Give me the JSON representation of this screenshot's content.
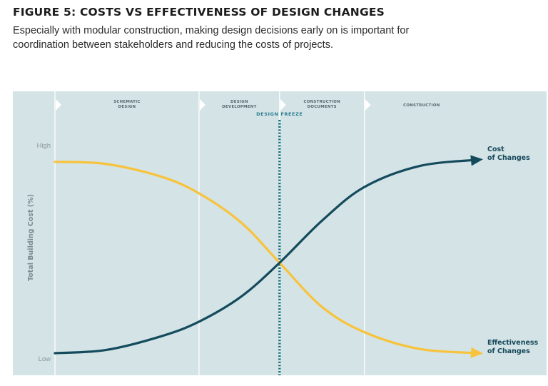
{
  "figure": {
    "title": "FIGURE 5: COSTS VS EFFECTIVENESS OF DESIGN CHANGES",
    "subtitle": "Especially with modular construction, making design decisions early on is important for coordination between stakeholders and reducing the costs of projects."
  },
  "colors": {
    "background": "#d3e3e6",
    "header_band": "#ffffff",
    "divider": "#ffffff",
    "cost_line": "#144b5c",
    "effectiveness_line": "#f8c33b",
    "freeze_line": "#136e7a",
    "label_text": "#16485a"
  },
  "chart_data": {
    "type": "line",
    "title": "",
    "xlabel": "",
    "ylabel": "Total Building Cost (%)",
    "x_range": [
      0,
      100
    ],
    "ylim": [
      0,
      100
    ],
    "y_tick_labels": [
      {
        "value": 95,
        "label": "High"
      },
      {
        "value": 0,
        "label": "Low"
      }
    ],
    "phases": [
      {
        "name": "SCHEMATIC DESIGN",
        "start": 0,
        "end": 34
      },
      {
        "name": "DESIGN DEVELOPMENT",
        "start": 34,
        "end": 53
      },
      {
        "name": "CONSTRUCTION DOCUMENTS",
        "start": 53,
        "end": 73
      },
      {
        "name": "CONSTRUCTION",
        "start": 73,
        "end": 100
      }
    ],
    "marker": {
      "label": "DESIGN FREEZE",
      "x": 53
    },
    "series": [
      {
        "name": "Cost of Changes",
        "label_lines": [
          "Cost",
          "of Changes"
        ],
        "x": [
          0,
          12,
          25,
          34,
          44,
          53,
          63,
          73,
          86,
          100
        ],
        "y": [
          0,
          1.5,
          8,
          15,
          27,
          43,
          63,
          79,
          89,
          92
        ]
      },
      {
        "name": "Effectiveness of Changes",
        "label_lines": [
          "Effectiveness",
          "of Changes"
        ],
        "x": [
          0,
          12,
          25,
          34,
          44,
          53,
          63,
          73,
          86,
          100
        ],
        "y": [
          91,
          90,
          84,
          76,
          62,
          43,
          22,
          10,
          2,
          0
        ]
      }
    ]
  }
}
